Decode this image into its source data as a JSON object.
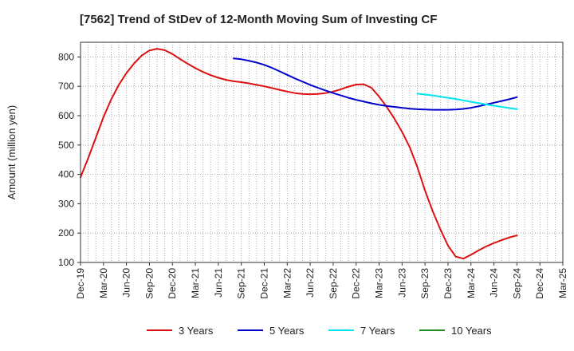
{
  "chart_data": {
    "type": "line",
    "title": "[7562]  Trend of StDev of 12-Month Moving Sum of Investing CF",
    "xlabel": "",
    "ylabel": "Amount (million yen)",
    "ylim": [
      100,
      850
    ],
    "yticks": [
      100,
      200,
      300,
      400,
      500,
      600,
      700,
      800
    ],
    "grid": true,
    "legend_position": "bottom",
    "x_range": [
      "Dec-19",
      "Mar-25"
    ],
    "x_ticks": [
      "Dec-19",
      "Mar-20",
      "Jun-20",
      "Sep-20",
      "Dec-20",
      "Mar-21",
      "Jun-21",
      "Sep-21",
      "Dec-21",
      "Mar-22",
      "Jun-22",
      "Sep-22",
      "Dec-22",
      "Mar-23",
      "Jun-23",
      "Sep-23",
      "Dec-23",
      "Mar-24",
      "Jun-24",
      "Sep-24",
      "Dec-24",
      "Mar-25"
    ],
    "series": [
      {
        "name": "3 Years",
        "color": "#dd1111",
        "points": [
          [
            "Dec-19",
            390
          ],
          [
            "Jan-20",
            455
          ],
          [
            "Feb-20",
            525
          ],
          [
            "Mar-20",
            595
          ],
          [
            "Apr-20",
            655
          ],
          [
            "May-20",
            705
          ],
          [
            "Jun-20",
            745
          ],
          [
            "Jul-20",
            778
          ],
          [
            "Aug-20",
            805
          ],
          [
            "Sep-20",
            822
          ],
          [
            "Oct-20",
            828
          ],
          [
            "Nov-20",
            823
          ],
          [
            "Dec-20",
            810
          ],
          [
            "Jan-21",
            793
          ],
          [
            "Feb-21",
            777
          ],
          [
            "Mar-21",
            762
          ],
          [
            "Apr-21",
            749
          ],
          [
            "May-21",
            738
          ],
          [
            "Jun-21",
            729
          ],
          [
            "Jul-21",
            722
          ],
          [
            "Aug-21",
            717
          ],
          [
            "Sep-21",
            714
          ],
          [
            "Oct-21",
            710
          ],
          [
            "Nov-21",
            705
          ],
          [
            "Dec-21",
            700
          ],
          [
            "Jan-22",
            694
          ],
          [
            "Feb-22",
            688
          ],
          [
            "Mar-22",
            682
          ],
          [
            "Apr-22",
            677
          ],
          [
            "May-22",
            674
          ],
          [
            "Jun-22",
            673
          ],
          [
            "Jul-22",
            674
          ],
          [
            "Aug-22",
            677
          ],
          [
            "Sep-22",
            682
          ],
          [
            "Oct-22",
            690
          ],
          [
            "Nov-22",
            699
          ],
          [
            "Dec-22",
            706
          ],
          [
            "Jan-23",
            707
          ],
          [
            "Feb-23",
            695
          ],
          [
            "Mar-23",
            665
          ],
          [
            "Apr-23",
            630
          ],
          [
            "May-23",
            590
          ],
          [
            "Jun-23",
            545
          ],
          [
            "Jul-23",
            493
          ],
          [
            "Aug-23",
            425
          ],
          [
            "Sep-23",
            345
          ],
          [
            "Oct-23",
            275
          ],
          [
            "Nov-23",
            213
          ],
          [
            "Dec-23",
            157
          ],
          [
            "Jan-24",
            120
          ],
          [
            "Feb-24",
            113
          ],
          [
            "Mar-24",
            126
          ],
          [
            "Apr-24",
            141
          ],
          [
            "May-24",
            155
          ],
          [
            "Jun-24",
            166
          ],
          [
            "Jul-24",
            176
          ],
          [
            "Aug-24",
            185
          ],
          [
            "Sep-24",
            192
          ]
        ]
      },
      {
        "name": "5 Years",
        "color": "#0000cc",
        "points": [
          [
            "Aug-21",
            795
          ],
          [
            "Sep-21",
            792
          ],
          [
            "Oct-21",
            787
          ],
          [
            "Nov-21",
            781
          ],
          [
            "Dec-21",
            773
          ],
          [
            "Jan-22",
            763
          ],
          [
            "Feb-22",
            751
          ],
          [
            "Mar-22",
            739
          ],
          [
            "Apr-22",
            727
          ],
          [
            "May-22",
            716
          ],
          [
            "Jun-22",
            705
          ],
          [
            "Jul-22",
            695
          ],
          [
            "Aug-22",
            686
          ],
          [
            "Sep-22",
            677
          ],
          [
            "Oct-22",
            669
          ],
          [
            "Nov-22",
            661
          ],
          [
            "Dec-22",
            654
          ],
          [
            "Jan-23",
            648
          ],
          [
            "Feb-23",
            642
          ],
          [
            "Mar-23",
            637
          ],
          [
            "Apr-23",
            633
          ],
          [
            "May-23",
            630
          ],
          [
            "Jun-23",
            627
          ],
          [
            "Jul-23",
            624
          ],
          [
            "Aug-23",
            622
          ],
          [
            "Sep-23",
            621
          ],
          [
            "Oct-23",
            620
          ],
          [
            "Nov-23",
            620
          ],
          [
            "Dec-23",
            620
          ],
          [
            "Jan-24",
            621
          ],
          [
            "Feb-24",
            623
          ],
          [
            "Mar-24",
            627
          ],
          [
            "Apr-24",
            632
          ],
          [
            "May-24",
            638
          ],
          [
            "Jun-24",
            644
          ],
          [
            "Jul-24",
            650
          ],
          [
            "Aug-24",
            656
          ],
          [
            "Sep-24",
            663
          ]
        ]
      },
      {
        "name": "7 Years",
        "color": "#00e5ee",
        "points": [
          [
            "Aug-23",
            675
          ],
          [
            "Sep-23",
            672
          ],
          [
            "Oct-23",
            669
          ],
          [
            "Nov-23",
            665
          ],
          [
            "Dec-23",
            661
          ],
          [
            "Jan-24",
            657
          ],
          [
            "Feb-24",
            652
          ],
          [
            "Mar-24",
            647
          ],
          [
            "Apr-24",
            643
          ],
          [
            "May-24",
            638
          ],
          [
            "Jun-24",
            634
          ],
          [
            "Jul-24",
            630
          ],
          [
            "Aug-24",
            626
          ],
          [
            "Sep-24",
            622
          ]
        ]
      },
      {
        "name": "10 Years",
        "color": "#228b22",
        "points": []
      }
    ]
  }
}
